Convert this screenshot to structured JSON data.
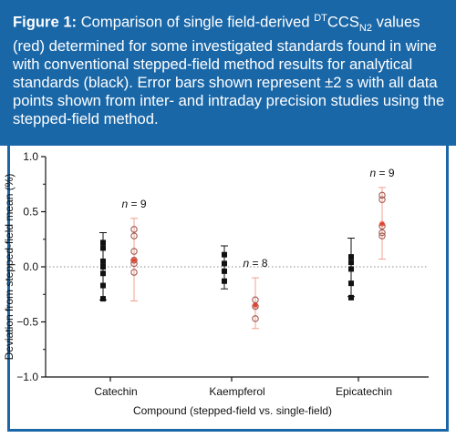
{
  "caption": {
    "lead": "Figure 1:",
    "text_a": " Comparison of single field-derived ",
    "sup": "DT",
    "ccs": "CCS",
    "sub": "N2",
    "text_b": " values (red) determined for some investigated standards found in wine with conventional stepped-field method results for analytical standards (black). Error bars shown represent ±2 s with all data points shown from inter- and intraday precision studies using the stepped-field method."
  },
  "colors": {
    "caption_bg": "#1a67a8",
    "stepped": "#111111",
    "single": "#e0402a",
    "single_marker": "#a05a50",
    "error_single": "#f0a090"
  },
  "chart_data": {
    "type": "scatter",
    "title": "",
    "xlabel": "Compound (stepped-field vs. single-field)",
    "ylabel": "Deviation from stepped-field mean (%)",
    "ylim": [
      -1.0,
      1.0
    ],
    "yticks": [
      "-1.0",
      "-0.5",
      "0.0",
      "0.5",
      "1.0"
    ],
    "ytick_values": [
      -1.0,
      -0.5,
      0.0,
      0.5,
      1.0
    ],
    "categories": [
      "Catechin",
      "Kaempferol",
      "Epicatechin"
    ],
    "reference_line": 0.0,
    "series": [
      {
        "name": "stepped-field",
        "marker": "filled-square",
        "points": [
          [
            0.22,
            0.17,
            0.05,
            0.0,
            -0.06,
            -0.17,
            -0.29
          ],
          [
            0.11,
            0.03,
            -0.04,
            -0.13
          ],
          [
            0.09,
            0.04,
            -0.02,
            -0.15,
            -0.28
          ]
        ],
        "error_bars": [
          {
            "mean": 0.0,
            "low": -0.3,
            "high": 0.31
          },
          {
            "mean": 0.0,
            "low": -0.2,
            "high": 0.19
          },
          {
            "mean": 0.0,
            "low": -0.27,
            "high": 0.26
          }
        ]
      },
      {
        "name": "single-field",
        "marker": "open-circle",
        "points": [
          [
            0.34,
            0.28,
            0.14,
            0.06,
            0.03,
            -0.05
          ],
          [
            -0.3,
            -0.36,
            -0.47
          ],
          [
            0.65,
            0.61,
            0.37,
            0.31,
            0.28
          ]
        ],
        "means": [
          0.06,
          -0.35,
          0.39
        ],
        "error_bars": [
          {
            "low": -0.31,
            "high": 0.44
          },
          {
            "low": -0.56,
            "high": -0.1
          },
          {
            "low": 0.07,
            "high": 0.72
          }
        ],
        "annotations": [
          "n = 9",
          "n = 8",
          "n = 9"
        ]
      }
    ]
  }
}
